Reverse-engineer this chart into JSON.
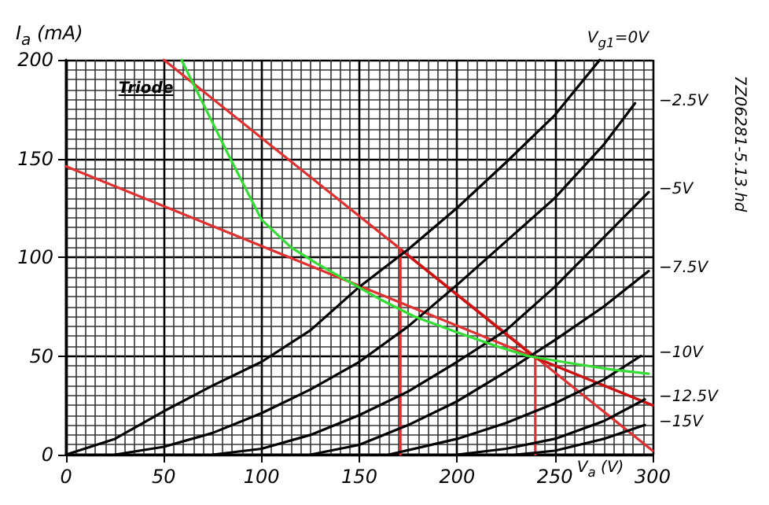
{
  "chart_data": {
    "type": "line",
    "xlabel": "V$_{a}$ (V)",
    "ylabel": "I$_{a}$ (mA)",
    "xlim": [
      0,
      300
    ],
    "ylim": [
      0,
      200
    ],
    "xticks": [
      0,
      50,
      100,
      150,
      200,
      250,
      300
    ],
    "yticks": [
      0,
      50,
      100,
      150,
      200
    ],
    "grid": true,
    "marker": "none",
    "line_style": "solid",
    "annotations": [
      "7Z06281-5.13.hd"
    ],
    "series": [
      {
        "name": "V$_{g1}$=0V",
        "color": "#000000",
        "x": [
          0,
          25,
          50,
          75,
          100,
          125,
          150,
          175,
          200,
          225,
          250,
          273
        ],
        "values": [
          0,
          8,
          22,
          35,
          47,
          63,
          85,
          104,
          125,
          148,
          172,
          200
        ]
      },
      {
        "name": "−2.5V",
        "color": "#000000",
        "x": [
          25,
          50,
          75,
          100,
          125,
          150,
          175,
          200,
          225,
          250,
          275,
          291
        ],
        "values": [
          0,
          4,
          11,
          21,
          33,
          47,
          65,
          86,
          108,
          130,
          157,
          178
        ]
      },
      {
        "name": "−5V",
        "color": "#000000",
        "x": [
          75,
          100,
          125,
          150,
          175,
          200,
          225,
          250,
          275,
          298
        ],
        "values": [
          0,
          3,
          10,
          20,
          32,
          47,
          63,
          85,
          110,
          133
        ]
      },
      {
        "name": "−7.5V",
        "color": "#000000",
        "x": [
          125,
          150,
          175,
          200,
          225,
          250,
          275,
          298
        ],
        "values": [
          0,
          5,
          15,
          27,
          42,
          58,
          75,
          93
        ]
      },
      {
        "name": "−10V",
        "color": "#000000",
        "x": [
          165,
          200,
          225,
          250,
          275,
          294
        ],
        "values": [
          0,
          8,
          16,
          26,
          38,
          50
        ]
      },
      {
        "name": "−12.5V",
        "color": "#000000",
        "x": [
          200,
          225,
          250,
          275,
          296
        ],
        "values": [
          0,
          3,
          8,
          17,
          28
        ]
      },
      {
        "name": "−15V",
        "color": "#000000",
        "x": [
          230,
          250,
          275,
          296
        ],
        "values": [
          0,
          2,
          8,
          15
        ]
      },
      {
        "name": "Triode",
        "color": "#33dd33",
        "x": [
          59,
          70,
          84,
          100,
          115,
          128,
          144,
          160,
          178,
          200,
          220,
          236,
          260,
          280,
          298
        ],
        "values": [
          200,
          178,
          150,
          119,
          105,
          97,
          88,
          79,
          70,
          62,
          55,
          50,
          46,
          43,
          41
        ]
      },
      {
        "color": "#e03030",
        "x": [
          50,
          300
        ],
        "values": [
          200,
          2
        ]
      },
      {
        "color": "#e03030",
        "x": [
          0,
          300
        ],
        "values": [
          146,
          25
        ]
      },
      {
        "color": "#cc1111",
        "x": [
          171,
          240,
          300
        ],
        "values": [
          104,
          49,
          25
        ]
      },
      {
        "color": "#e03030",
        "x": [
          171,
          171
        ],
        "values": [
          0,
          104
        ]
      },
      {
        "color": "#e03030",
        "x": [
          240,
          240
        ],
        "values": [
          0,
          49
        ]
      }
    ]
  }
}
